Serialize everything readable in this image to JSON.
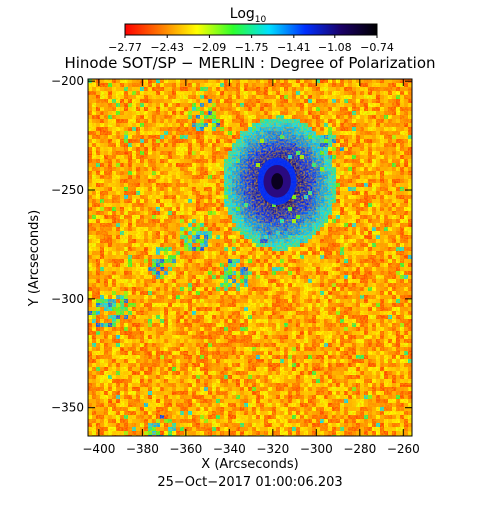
{
  "chart_data": {
    "type": "heatmap",
    "title": "Hinode SOT/SP − MERLIN : Degree of Polarization",
    "xlabel": "X (Arcseconds)",
    "ylabel": "Y (Arcseconds)",
    "footer": "25−Oct−2017 01:00:06.203",
    "xlim": [
      -405,
      -256
    ],
    "ylim": [
      -363,
      -199
    ],
    "x_ticks": [
      {
        "value": -400,
        "label": "−400"
      },
      {
        "value": -380,
        "label": "−380"
      },
      {
        "value": -360,
        "label": "−360"
      },
      {
        "value": -340,
        "label": "−340"
      },
      {
        "value": -320,
        "label": "−320"
      },
      {
        "value": -300,
        "label": "−300"
      },
      {
        "value": -280,
        "label": "−280"
      },
      {
        "value": -260,
        "label": "−260"
      }
    ],
    "y_ticks": [
      {
        "value": -200,
        "label": "−200"
      },
      {
        "value": -250,
        "label": "−250"
      },
      {
        "value": -300,
        "label": "−300"
      },
      {
        "value": -350,
        "label": "−350"
      }
    ],
    "colorbar": {
      "title_main": "Log",
      "title_sub": "10",
      "range": [
        -2.77,
        -0.74
      ],
      "ticks": [
        {
          "value": -2.77,
          "label": "−2.77"
        },
        {
          "value": -2.43,
          "label": "−2.43"
        },
        {
          "value": -2.09,
          "label": "−2.09"
        },
        {
          "value": -1.75,
          "label": "−1.75"
        },
        {
          "value": -1.41,
          "label": "−1.41"
        },
        {
          "value": -1.08,
          "label": "−1.08"
        },
        {
          "value": -0.74,
          "label": "−0.74"
        }
      ],
      "colors": [
        "#ff0000",
        "#ff7a00",
        "#ffff00",
        "#2dff2d",
        "#00e0ff",
        "#0030ff",
        "#1a0066",
        "#000000"
      ]
    },
    "features": [
      {
        "name": "sunspot",
        "x": -318,
        "y": -246,
        "rx": 6,
        "ry": 7.5,
        "value": -0.74
      }
    ]
  }
}
